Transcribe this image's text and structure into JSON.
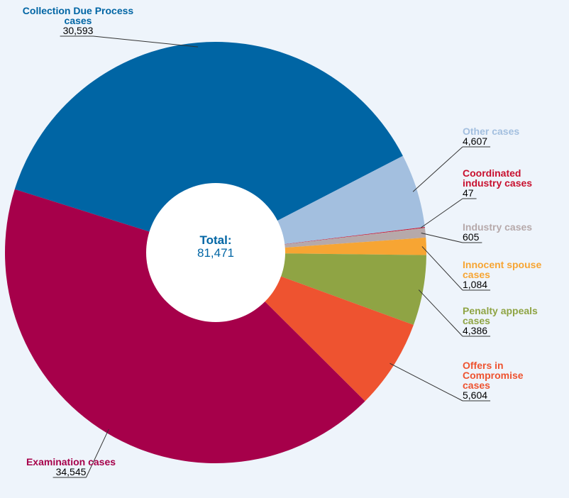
{
  "chart_data": {
    "type": "donut",
    "categories": [
      "Collection Due Process cases",
      "Other cases",
      "Coordinated industry cases",
      "Industry cases",
      "Innocent spouse cases",
      "Penalty appeals cases",
      "Offers in Compromise cases",
      "Examination cases"
    ],
    "values": [
      30593,
      4607,
      47,
      605,
      1084,
      4386,
      5604,
      34545
    ],
    "value_labels": [
      "30,593",
      "4,607",
      "47",
      "605",
      "1,084",
      "4,386",
      "5,604",
      "34,545"
    ],
    "colors": [
      "#0065a4",
      "#a3bfdf",
      "#c8102e",
      "#b6a9aa",
      "#f7a533",
      "#8fa444",
      "#ee5330",
      "#a6004a"
    ],
    "center_title": "Total:",
    "center_value": 81471,
    "center_value_label": "81,471"
  }
}
